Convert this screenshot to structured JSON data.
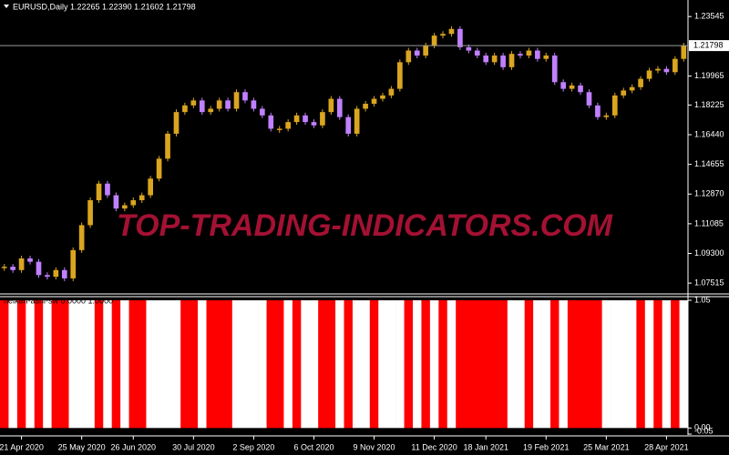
{
  "chart_data": {
    "type": "candlestick",
    "title": "EURUSD,Daily  1.22265 1.22390 1.21602 1.21798",
    "watermark": "TOP-TRADING-INDICATORS.COM",
    "categories": [
      null,
      null,
      "21 Apr 2020",
      null,
      null,
      null,
      null,
      null,
      null,
      "25 May 2020",
      null,
      null,
      null,
      null,
      null,
      "26 Jun 2020",
      null,
      null,
      null,
      null,
      null,
      null,
      "30 Jul 2020",
      null,
      null,
      null,
      null,
      null,
      null,
      "2 Sep 2020",
      null,
      null,
      null,
      null,
      null,
      null,
      "6 Oct 2020",
      null,
      null,
      null,
      null,
      null,
      null,
      "9 Nov 2020",
      null,
      null,
      null,
      null,
      null,
      null,
      "11 Dec 2020",
      null,
      null,
      null,
      null,
      null,
      "18 Jan 2021",
      null,
      null,
      null,
      null,
      null,
      null,
      "19 Feb 2021",
      null,
      null,
      null,
      null,
      null,
      null,
      "25 Mar 2021",
      null,
      null,
      null,
      null,
      null,
      null,
      "28 Apr 2021",
      null,
      null
    ],
    "close": [
      1.085,
      1.083,
      1.09,
      1.088,
      1.08,
      1.079,
      1.083,
      1.078,
      1.095,
      1.11,
      1.125,
      1.135,
      1.128,
      1.12,
      1.122,
      1.125,
      1.128,
      1.138,
      1.15,
      1.165,
      1.178,
      1.182,
      1.185,
      1.178,
      1.18,
      1.185,
      1.18,
      1.19,
      1.185,
      1.18,
      1.176,
      1.168,
      1.168,
      1.172,
      1.176,
      1.172,
      1.17,
      1.178,
      1.186,
      1.175,
      1.165,
      1.18,
      1.183,
      1.186,
      1.188,
      1.192,
      1.208,
      1.215,
      1.212,
      1.218,
      1.224,
      1.225,
      1.228,
      1.217,
      1.215,
      1.212,
      1.208,
      1.212,
      1.205,
      1.213,
      1.212,
      1.215,
      1.21,
      1.212,
      1.196,
      1.192,
      1.194,
      1.19,
      1.182,
      1.175,
      1.176,
      1.188,
      1.191,
      1.193,
      1.198,
      1.203,
      1.204,
      1.202,
      1.21,
      1.218
    ],
    "up_color": "#daa520",
    "down_color": "#c080ff",
    "ylim": [
      1.0692,
      1.2454
    ],
    "yticks": [
      1.23545,
      1.19965,
      1.18225,
      {
        "value": 1.1644,
        "label": "1.16440"
      },
      1.14655,
      {
        "value": 1.1287,
        "label": "1.12870"
      },
      1.11085,
      {
        "value": 1.093,
        "label": "1.09300"
      },
      1.07515
    ],
    "current_price": 1.21798,
    "indicator": {
      "name": "heiken-ashi-sw 0.0000 1.0000",
      "values": [
        1,
        0,
        1,
        0,
        1,
        0,
        1,
        1,
        0,
        0,
        0,
        1,
        0,
        1,
        0,
        1,
        1,
        0,
        0,
        0,
        0,
        1,
        1,
        0,
        1,
        1,
        1,
        0,
        0,
        0,
        0,
        1,
        1,
        0,
        1,
        0,
        0,
        1,
        1,
        0,
        1,
        0,
        0,
        1,
        0,
        0,
        0,
        1,
        0,
        1,
        0,
        1,
        0,
        1,
        1,
        1,
        1,
        1,
        1,
        0,
        0,
        1,
        0,
        0,
        1,
        0,
        1,
        1,
        1,
        1,
        0,
        0,
        0,
        0,
        1,
        0,
        1,
        0,
        1,
        0
      ],
      "on_color": "#ff0000",
      "off_color": "#ffffff",
      "ylim": [
        -0.05,
        1.05
      ],
      "yticks": [
        1.05,
        {
          "value": 0,
          "label": "0.00"
        },
        -0.05
      ]
    }
  }
}
